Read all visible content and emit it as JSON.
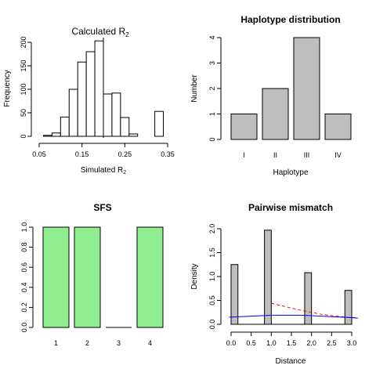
{
  "panels": [
    {
      "type": "bar",
      "title": "Calculated R",
      "title_sub": "2",
      "xlabel": "Simulated R",
      "xlabel_sub": "2",
      "ylabel": "Frequency",
      "xticks": [
        "0.05",
        "0.15",
        "0.25",
        "0.35"
      ],
      "yticks": [
        "0",
        "50",
        "100",
        "150",
        "200"
      ]
    },
    {
      "type": "bar",
      "title": "Haplotype distribution",
      "xlabel": "Haplotype",
      "ylabel": "Number",
      "yticks": [
        "0",
        "1",
        "2",
        "3",
        "4"
      ]
    },
    {
      "type": "bar",
      "title": "SFS",
      "xlabel": "",
      "ylabel": "",
      "yticks": [
        "0.0",
        "0.2",
        "0.4",
        "0.6",
        "0.8",
        "1.0"
      ]
    },
    {
      "type": "bar",
      "title": "Pairwise mismatch",
      "xlabel": "Distance",
      "ylabel": "Density",
      "xticks": [
        "0.0",
        "0.5",
        "1.0",
        "1.5",
        "2.0",
        "2.5",
        "3.0"
      ],
      "yticks": [
        "0.0",
        "0.5",
        "1.0",
        "1.5",
        "2.0"
      ]
    }
  ],
  "chart_data": [
    {
      "type": "bar",
      "subtype": "histogram",
      "bin_edges": [
        0.06,
        0.08,
        0.1,
        0.12,
        0.14,
        0.16,
        0.18,
        0.2,
        0.22,
        0.24,
        0.26,
        0.28,
        0.3,
        0.32,
        0.34
      ],
      "values": [
        2,
        7,
        41,
        100,
        158,
        180,
        203,
        90,
        92,
        40,
        5,
        0,
        0,
        53
      ],
      "observed_line_x": 0.2,
      "xlim": [
        0.05,
        0.35
      ],
      "ylim": [
        0,
        210
      ]
    },
    {
      "type": "bar",
      "categories": [
        "I",
        "II",
        "III",
        "IV"
      ],
      "values": [
        1,
        2,
        4,
        1
      ],
      "ylim": [
        0,
        4
      ],
      "fill": "#bebebe"
    },
    {
      "type": "bar",
      "categories": [
        "1",
        "2",
        "3",
        "4"
      ],
      "values": [
        1,
        1,
        0,
        1
      ],
      "ylim": [
        0,
        1
      ],
      "fill": "#90ee90"
    },
    {
      "type": "bar",
      "subtype": "density-histogram",
      "bars": [
        {
          "x0": 0.0,
          "x1": 0.17,
          "value": 1.25
        },
        {
          "x0": 0.83,
          "x1": 1.0,
          "value": 1.97
        },
        {
          "x0": 1.83,
          "x1": 2.0,
          "value": 1.08
        },
        {
          "x0": 2.83,
          "x1": 3.0,
          "value": 0.71
        }
      ],
      "xlim": [
        0.0,
        3.0
      ],
      "ylim": [
        0.0,
        2.1
      ],
      "series": [
        {
          "color": "#ff0000",
          "dash": "dashed",
          "x": [
            1.0,
            1.25,
            1.5,
            1.75,
            2.0,
            2.25,
            2.5,
            2.75,
            3.0,
            3.15
          ],
          "values": [
            0.44,
            0.39,
            0.34,
            0.29,
            0.25,
            0.21,
            0.18,
            0.16,
            0.14,
            0.13
          ]
        },
        {
          "color": "#0000ff",
          "dash": "solid",
          "x": [
            -0.05,
            0.25,
            0.5,
            0.75,
            1.0,
            1.25,
            1.5,
            1.75,
            2.0,
            2.25,
            2.5,
            2.75,
            3.0,
            3.15
          ],
          "values": [
            0.15,
            0.16,
            0.17,
            0.18,
            0.19,
            0.19,
            0.19,
            0.19,
            0.18,
            0.17,
            0.16,
            0.15,
            0.14,
            0.13
          ]
        }
      ]
    }
  ]
}
